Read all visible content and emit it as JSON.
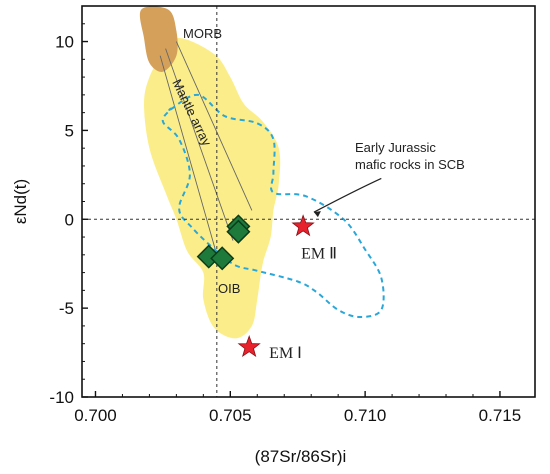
{
  "chart_data": {
    "type": "scatter",
    "title": "",
    "xlabel": "(87Sr/86Sr)i",
    "ylabel": "εNd(t)",
    "xlim": [
      0.6995,
      0.7163
    ],
    "ylim": [
      -10,
      12
    ],
    "xticks": [
      "0.700",
      "0.705",
      "0.710",
      "0.715"
    ],
    "xtick_values": [
      0.7,
      0.705,
      0.71,
      0.715
    ],
    "yticks": [
      "10",
      "5",
      "0",
      "-5",
      "-10"
    ],
    "ytick_values": [
      10,
      5,
      0,
      -5,
      -10
    ],
    "reference_lines": {
      "x": 0.7045,
      "y": 0
    },
    "grid": false,
    "series": [
      {
        "name": "Early Jurassic mafic rocks in SCB",
        "marker": "diamond",
        "color": "#1e7a3a",
        "points": [
          {
            "x": 0.7042,
            "y": -2.1
          },
          {
            "x": 0.7047,
            "y": -2.2
          },
          {
            "x": 0.7053,
            "y": -0.4
          },
          {
            "x": 0.7053,
            "y": -0.7
          }
        ]
      }
    ],
    "end_members": [
      {
        "label": "EM Ⅱ",
        "x": 0.7077,
        "y": -0.4,
        "marker": "star",
        "color": "#e8222d"
      },
      {
        "label": "EM Ⅰ",
        "x": 0.7057,
        "y": -7.2,
        "marker": "star",
        "color": "#e8222d"
      }
    ],
    "fields": [
      {
        "label": "MORB",
        "color": "#d4a05a"
      },
      {
        "label": "OIB",
        "color": "#fbee8a"
      },
      {
        "label": "Mantle array"
      },
      {
        "label": "Early Jurassic mafic rocks in SCB",
        "style": "dashed",
        "color": "#2aa7d9"
      }
    ],
    "fields_shapes": {
      "morb": [
        [
          0.7017,
          11.8
        ],
        [
          0.7027,
          11.8
        ],
        [
          0.703,
          10.6
        ],
        [
          0.703,
          9.2
        ],
        [
          0.7025,
          8.3
        ],
        [
          0.702,
          8.8
        ],
        [
          0.7018,
          10.2
        ]
      ],
      "oib": [
        [
          0.7025,
          9.3
        ],
        [
          0.7031,
          10.2
        ],
        [
          0.7044,
          9.3
        ],
        [
          0.705,
          8.0
        ],
        [
          0.7055,
          6.5
        ],
        [
          0.7062,
          5.5
        ],
        [
          0.7068,
          4.0
        ],
        [
          0.7068,
          2.0
        ],
        [
          0.7066,
          0.5
        ],
        [
          0.7065,
          -1.0
        ],
        [
          0.7062,
          -2.5
        ],
        [
          0.706,
          -4.5
        ],
        [
          0.7058,
          -6.0
        ],
        [
          0.7052,
          -6.7
        ],
        [
          0.7044,
          -6.1
        ],
        [
          0.704,
          -4.5
        ],
        [
          0.704,
          -3.0
        ],
        [
          0.7034,
          -1.8
        ],
        [
          0.703,
          0.0
        ],
        [
          0.7026,
          1.5
        ],
        [
          0.702,
          4.0
        ],
        [
          0.7018,
          6.5
        ],
        [
          0.702,
          8.0
        ]
      ],
      "scb_dashed": [
        [
          0.7028,
          6.2
        ],
        [
          0.7038,
          7.0
        ],
        [
          0.7048,
          5.8
        ],
        [
          0.706,
          5.4
        ],
        [
          0.7066,
          4.5
        ],
        [
          0.7066,
          2.6
        ],
        [
          0.7066,
          1.5
        ],
        [
          0.7078,
          1.3
        ],
        [
          0.7092,
          0.0
        ],
        [
          0.71,
          -1.7
        ],
        [
          0.7106,
          -3.3
        ],
        [
          0.7106,
          -5.1
        ],
        [
          0.7098,
          -5.5
        ],
        [
          0.709,
          -5.1
        ],
        [
          0.7082,
          -4.1
        ],
        [
          0.7075,
          -3.5
        ],
        [
          0.706,
          -2.9
        ],
        [
          0.7052,
          -2.6
        ],
        [
          0.7045,
          -1.8
        ],
        [
          0.7036,
          -0.5
        ],
        [
          0.7031,
          0.6
        ],
        [
          0.7035,
          2.5
        ],
        [
          0.7031,
          4.5
        ],
        [
          0.7025,
          5.5
        ],
        [
          0.7028,
          6.2
        ]
      ],
      "mantle_array_lines": [
        [
          [
            0.7024,
            9.2
          ],
          [
            0.7045,
            -2.0
          ]
        ],
        [
          [
            0.7026,
            9.6
          ],
          [
            0.7051,
            -1.2
          ]
        ],
        [
          [
            0.703,
            10.0
          ],
          [
            0.7058,
            0.5
          ]
        ]
      ],
      "annotation_arrow": [
        [
          0.7106,
          2.3
        ],
        [
          0.7096,
          1.6
        ],
        [
          0.7081,
          0.4
        ]
      ]
    }
  }
}
